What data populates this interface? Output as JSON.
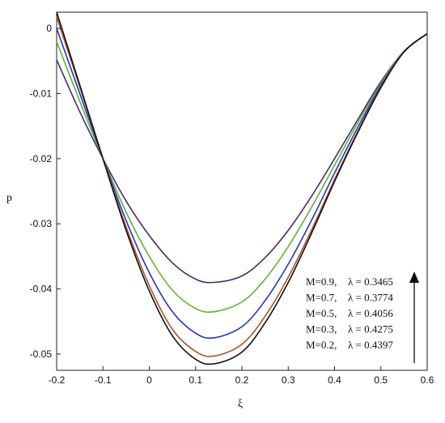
{
  "chart_data": {
    "type": "line",
    "xlabel": "ξ",
    "ylabel": "p",
    "xlim": [
      -0.2,
      0.6
    ],
    "ylim": [
      -0.0525,
      0.0025
    ],
    "x_ticks": [
      -0.2,
      -0.1,
      0,
      0.1,
      0.2,
      0.3,
      0.4,
      0.5,
      0.6
    ],
    "x_tick_labels": [
      "-0.2",
      "-0.1",
      "0",
      "0.1",
      "0.2",
      "0.3",
      "0.4",
      "0.5",
      "0.6"
    ],
    "y_ticks": [
      0,
      -0.01,
      -0.02,
      -0.03,
      -0.04,
      -0.05
    ],
    "y_tick_labels": [
      "0",
      "-0.01",
      "-0.02",
      "-0.03",
      "-0.04",
      "-0.05"
    ],
    "grid": false,
    "legend_position": "bottom-right",
    "arrow": {
      "direction": "up"
    },
    "series": [
      {
        "name": "M=0.9, λ = 0.3465",
        "M": "M=0.9,",
        "lambda": "λ =  0.3465",
        "color": "#4b2a6e",
        "x": [
          -0.2,
          -0.15,
          -0.1,
          -0.05,
          0,
          0.05,
          0.1,
          0.14,
          0.2,
          0.25,
          0.3,
          0.35,
          0.4,
          0.45,
          0.5,
          0.55,
          0.6
        ],
        "y": [
          -0.0048,
          -0.0128,
          -0.02,
          -0.0265,
          -0.0318,
          -0.036,
          -0.0385,
          -0.039,
          -0.038,
          -0.0352,
          -0.031,
          -0.0258,
          -0.02,
          -0.014,
          -0.0082,
          -0.0035,
          -0.0008
        ]
      },
      {
        "name": "M=0.7, λ = 0.3774",
        "M": "M=0.7,",
        "lambda": "λ =  0.3774",
        "color": "#5cb531",
        "x": [
          -0.2,
          -0.15,
          -0.1,
          -0.05,
          0,
          0.05,
          0.1,
          0.14,
          0.2,
          0.25,
          0.3,
          0.35,
          0.4,
          0.45,
          0.5,
          0.55,
          0.6
        ],
        "y": [
          -0.002,
          -0.0112,
          -0.02,
          -0.0282,
          -0.035,
          -0.0402,
          -0.043,
          -0.0435,
          -0.042,
          -0.0385,
          -0.0335,
          -0.0275,
          -0.021,
          -0.0145,
          -0.0085,
          -0.0035,
          -0.0008
        ]
      },
      {
        "name": "M=0.5, λ = 0.4056",
        "M": "M=0.5,",
        "lambda": "λ =  0.4056",
        "color": "#2233cc",
        "x": [
          -0.2,
          -0.15,
          -0.1,
          -0.05,
          0,
          0.05,
          0.1,
          0.14,
          0.2,
          0.25,
          0.3,
          0.35,
          0.4,
          0.45,
          0.5,
          0.55,
          0.6
        ],
        "y": [
          0.0,
          -0.01,
          -0.02,
          -0.0295,
          -0.0375,
          -0.0435,
          -0.0468,
          -0.0475,
          -0.0458,
          -0.0418,
          -0.0362,
          -0.0295,
          -0.0222,
          -0.0152,
          -0.0088,
          -0.0036,
          -0.0008
        ]
      },
      {
        "name": "M=0.3, λ = 0.4275",
        "M": "M=0.3,",
        "lambda": "λ =  0.4275",
        "color": "#b0522a",
        "x": [
          -0.2,
          -0.15,
          -0.1,
          -0.05,
          0,
          0.05,
          0.1,
          0.14,
          0.2,
          0.25,
          0.3,
          0.35,
          0.4,
          0.45,
          0.5,
          0.55,
          0.6
        ],
        "y": [
          0.0018,
          -0.009,
          -0.02,
          -0.0305,
          -0.0395,
          -0.0462,
          -0.0496,
          -0.0503,
          -0.0485,
          -0.0442,
          -0.0382,
          -0.031,
          -0.0232,
          -0.0158,
          -0.009,
          -0.0036,
          -0.0008
        ]
      },
      {
        "name": "M=0.2, λ = 0.4397",
        "M": "M=0.2,",
        "lambda": "λ =  0.4397",
        "color": "#111111",
        "x": [
          -0.2,
          -0.15,
          -0.1,
          -0.05,
          0,
          0.05,
          0.1,
          0.14,
          0.2,
          0.25,
          0.3,
          0.35,
          0.4,
          0.45,
          0.5,
          0.55,
          0.6
        ],
        "y": [
          0.0025,
          -0.0087,
          -0.02,
          -0.031,
          -0.0403,
          -0.0472,
          -0.0508,
          -0.0515,
          -0.0497,
          -0.0452,
          -0.039,
          -0.0315,
          -0.0235,
          -0.016,
          -0.0091,
          -0.0036,
          -0.0008
        ]
      }
    ]
  }
}
